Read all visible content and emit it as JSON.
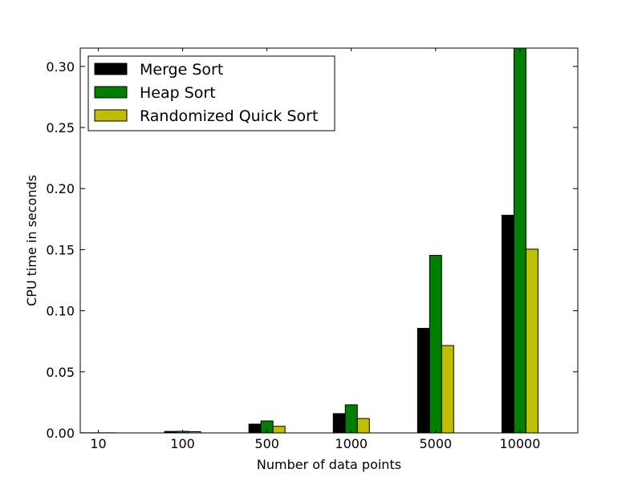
{
  "chart_data": {
    "type": "bar",
    "title": "",
    "xlabel": "Number of data points",
    "ylabel": "CPU time in seconds",
    "categories": [
      "10",
      "100",
      "500",
      "1000",
      "5000",
      "10000"
    ],
    "ylim": [
      0,
      0.315
    ],
    "yticks": [
      "0.00",
      "0.05",
      "0.10",
      "0.15",
      "0.20",
      "0.25",
      "0.30"
    ],
    "grid": false,
    "legend_position": "top-left",
    "series": [
      {
        "name": "Merge Sort",
        "color": "#000000",
        "values": [
          0.0001,
          0.0012,
          0.0072,
          0.0158,
          0.0856,
          0.1782
        ]
      },
      {
        "name": "Heap Sort",
        "color": "#008000",
        "values": [
          0.0001,
          0.0013,
          0.0098,
          0.023,
          0.1453,
          0.315
        ]
      },
      {
        "name": "Randomized Quick Sort",
        "color": "#bfbf00",
        "values": [
          0.0001,
          0.001,
          0.0054,
          0.0118,
          0.0715,
          0.1504
        ]
      }
    ]
  }
}
